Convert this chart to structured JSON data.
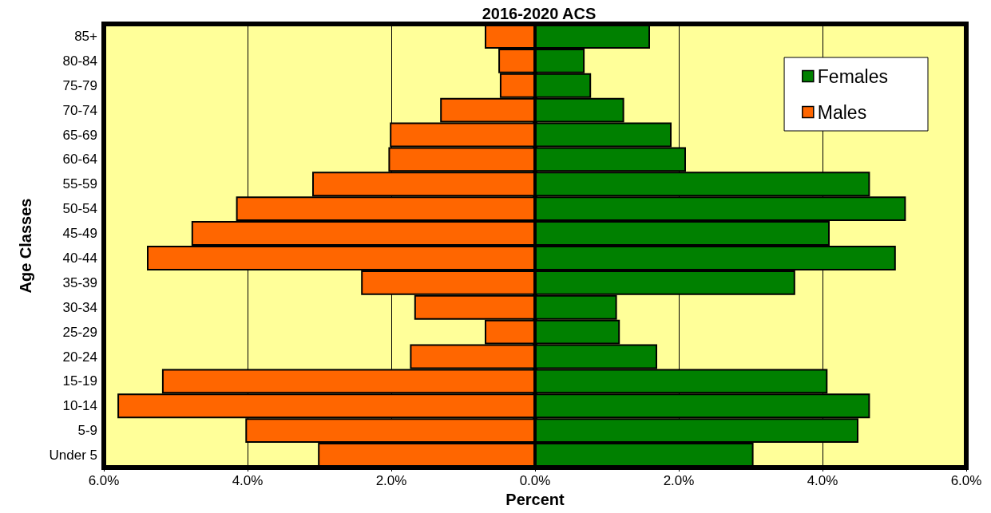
{
  "chart_data": {
    "type": "bar",
    "orientation": "horizontal",
    "title": "2016-2020 ACS",
    "xlabel": "Percent",
    "ylabel": "Age Classes",
    "categories": [
      "85+",
      "80-84",
      "75-79",
      "70-74",
      "65-69",
      "60-64",
      "55-59",
      "50-54",
      "45-49",
      "40-44",
      "35-39",
      "30-34",
      "25-29",
      "20-24",
      "15-19",
      "10-14",
      "5-9",
      "Under 5"
    ],
    "series": [
      {
        "name": "Females",
        "color": "#008000",
        "values": [
          1.6,
          0.69,
          0.78,
          1.24,
          1.9,
          2.1,
          4.66,
          5.16,
          4.1,
          5.02,
          3.62,
          1.14,
          1.18,
          1.7,
          4.07,
          4.66,
          4.5,
          3.04
        ]
      },
      {
        "name": "Males",
        "color": "#ff6600",
        "values": [
          -0.7,
          -0.51,
          -0.49,
          -1.32,
          -2.02,
          -2.04,
          -3.1,
          -4.16,
          -4.78,
          -5.4,
          -2.42,
          -1.68,
          -0.7,
          -1.74,
          -5.19,
          -5.81,
          -4.03,
          -3.02
        ]
      }
    ],
    "xlim": [
      -6,
      6
    ],
    "xticks": [
      {
        "value": -6,
        "label": "6.0%"
      },
      {
        "value": -4,
        "label": "4.0%"
      },
      {
        "value": -2,
        "label": "2.0%"
      },
      {
        "value": 0,
        "label": "0.0%"
      },
      {
        "value": 2,
        "label": "2.0%"
      },
      {
        "value": 4,
        "label": "4.0%"
      },
      {
        "value": 6,
        "label": "6.0%"
      }
    ],
    "grid": "x",
    "legend": "top right",
    "stacked": true
  }
}
